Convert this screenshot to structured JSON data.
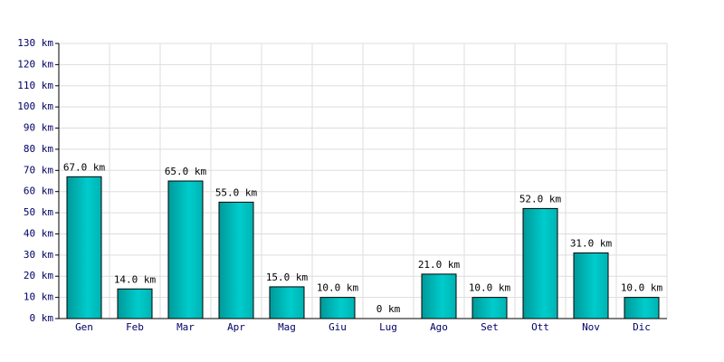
{
  "chart_data": {
    "type": "bar",
    "categories": [
      "Gen",
      "Feb",
      "Mar",
      "Apr",
      "Mag",
      "Giu",
      "Lug",
      "Ago",
      "Set",
      "Ott",
      "Nov",
      "Dic"
    ],
    "values": [
      67,
      14,
      65,
      55,
      15,
      10,
      0,
      21,
      10,
      52,
      31,
      10
    ],
    "value_labels": [
      "67.0 km",
      "14.0 km",
      "65.0 km",
      "55.0 km",
      "15.0 km",
      "10.0 km",
      "0 km",
      "21.0 km",
      "10.0 km",
      "52.0 km",
      "31.0 km",
      "10.0 km"
    ],
    "color": "#00cccc",
    "ylim": [
      0,
      130
    ],
    "yticks": [
      {
        "value": 0,
        "label": "0 km"
      },
      {
        "value": 10,
        "label": "10 km"
      },
      {
        "value": 20,
        "label": "20 km"
      },
      {
        "value": 30,
        "label": "30 km"
      },
      {
        "value": 40,
        "label": "40 km"
      },
      {
        "value": 50,
        "label": "50 km"
      },
      {
        "value": 60,
        "label": "60 km"
      },
      {
        "value": 70,
        "label": "70 km"
      },
      {
        "value": 80,
        "label": "80 km"
      },
      {
        "value": 90,
        "label": "90 km"
      },
      {
        "value": 100,
        "label": "100 km"
      },
      {
        "value": 110,
        "label": "110 km"
      },
      {
        "value": 120,
        "label": "120 km"
      },
      {
        "value": 130,
        "label": "130 km"
      }
    ],
    "grid": true
  }
}
